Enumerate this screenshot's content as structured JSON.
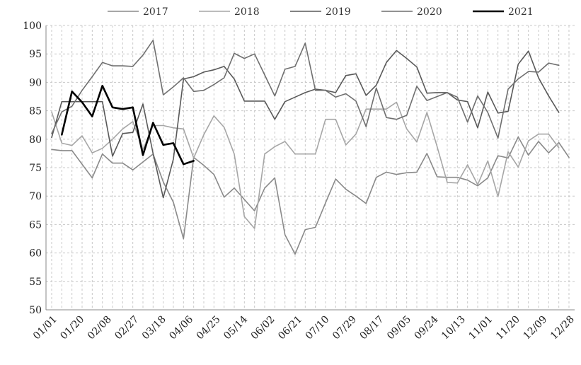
{
  "chart_data": {
    "type": "line",
    "ylim": [
      50,
      100
    ],
    "yticks": [
      "100",
      "95",
      "90",
      "85",
      "80",
      "75",
      "70",
      "65",
      "60",
      "55",
      "50"
    ],
    "xticks": [
      "01/01",
      "01/20",
      "02/08",
      "02/27",
      "03/18",
      "04/06",
      "04/25",
      "05/14",
      "06/02",
      "06/21",
      "07/10",
      "07/29",
      "08/17",
      "09/05",
      "09/24",
      "10/13",
      "11/01",
      "11/20",
      "12/09",
      "12/28"
    ],
    "grid": true,
    "legend_position": "top",
    "colors": {
      "2017": "#8a8a8a",
      "2018": "#a6a6a6",
      "2019": "#595959",
      "2020": "#6f6f6f",
      "2021": "#000000"
    },
    "series": [
      {
        "name": "2017",
        "values": [
          78.2,
          78,
          78,
          75.6,
          73.2,
          77.4,
          75.8,
          75.8,
          74.6,
          76,
          77.4,
          72.5,
          68.9,
          62.5,
          76.8,
          75.4,
          73.8,
          69.8,
          71.4,
          69.4,
          67.4,
          71.4,
          73.2,
          63.2,
          59.8,
          64.1,
          64.5,
          68.8,
          73,
          71.2,
          70,
          68.7,
          73.3,
          74.2,
          73.8,
          74.1,
          74.2,
          77.5,
          73.4,
          73.3,
          73.3,
          72.8,
          71.8,
          73.2,
          77.1,
          76.7,
          80.4,
          77.2,
          79.6,
          77.6,
          79.4,
          76.8
        ]
      },
      {
        "name": "2018",
        "values": [
          84.8,
          79.3,
          78.9,
          80.6,
          77.6,
          78.4,
          80,
          81.8,
          83.1,
          78.2,
          82.4,
          82.4,
          82,
          81.8,
          76.7,
          80.8,
          84.1,
          82.1,
          77.4,
          66.4,
          64.3,
          77.4,
          78.7,
          79.6,
          77.4,
          77.4,
          77.4,
          83.5,
          83.5,
          79,
          80.9,
          85.3,
          85.3,
          85.3,
          86.5,
          81.8,
          79.5,
          84.7,
          78.7,
          72.4,
          72.3,
          75.5,
          72,
          76.2,
          69.9,
          77.8,
          75.1,
          79.7,
          80.9,
          80.9,
          78.5
        ]
      },
      {
        "name": "2019",
        "values": [
          80.3,
          86.6,
          86.6,
          86.6,
          86.6,
          86.6,
          77,
          81,
          81.2,
          86.2,
          77.5,
          69.7,
          76.5,
          90.6,
          91,
          91.8,
          92.2,
          92.8,
          90.6,
          86.7,
          86.7,
          86.7,
          83.5,
          86.6,
          87.4,
          88.2,
          88.8,
          88.6,
          88.2,
          91.2,
          91.5,
          87.7,
          89.5,
          93.5,
          95.6,
          94.2,
          92.7,
          88.1,
          88.2,
          88.2,
          86.9,
          86.6,
          82,
          88.3,
          84.6,
          84.9,
          93.2,
          95.5,
          90.8,
          87.6,
          84.7
        ]
      },
      {
        "name": "2020",
        "values": [
          81,
          84.8,
          85.8,
          88.6,
          91,
          93.5,
          92.9,
          92.9,
          92.8,
          94.8,
          97.4,
          87.8,
          89.2,
          90.8,
          88.4,
          88.6,
          89.6,
          90.8,
          95.1,
          94.2,
          95,
          91.3,
          87.6,
          92.3,
          92.8,
          96.9,
          88.6,
          88.6,
          87.4,
          88,
          86.7,
          82.2,
          89,
          83.8,
          83.5,
          84.2,
          89.3,
          86.8,
          87.5,
          88.2,
          87.4,
          83,
          87.6,
          84.7,
          80.2,
          88.8,
          90.6,
          91.9,
          91.8,
          93.4,
          93
        ]
      },
      {
        "name": "2021",
        "values": [
          null,
          80.8,
          88.4,
          86.5,
          84,
          89.4,
          85.6,
          85.3,
          85.6,
          77.2,
          82.9,
          79,
          79.3,
          75.6,
          76.2
        ]
      }
    ]
  }
}
